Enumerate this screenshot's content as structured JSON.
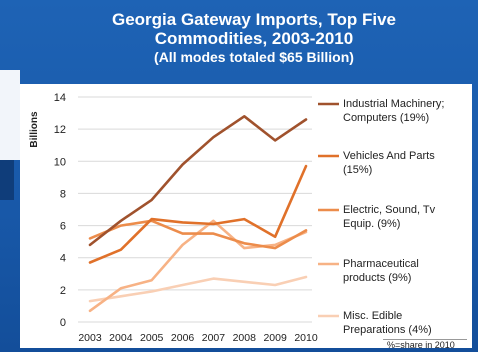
{
  "header": {
    "title_line1": "Georgia Gateway Imports, Top Five",
    "title_line2": "Commodities, 2003-2010",
    "subtitle": "(All modes totaled $65 Billion)"
  },
  "chart_data": {
    "type": "line",
    "title": "Georgia Gateway Imports, Top Five Commodities, 2003-2010",
    "subtitle": "(All modes totaled $65 Billion)",
    "ylabel": "Billions",
    "xlabel": "",
    "x": [
      "2003",
      "2004",
      "2005",
      "2006",
      "2007",
      "2008",
      "2009",
      "2010"
    ],
    "ylim": [
      0,
      14
    ],
    "yticks": [
      0,
      2,
      4,
      6,
      8,
      10,
      12,
      14
    ],
    "grid": true,
    "legend_position": "right",
    "series": [
      {
        "name": "Industrial Machinery; Computers (19%)",
        "label_lines": [
          "Industrial Machinery;",
          "Computers (19%)"
        ],
        "color": "#a0522d",
        "values": [
          4.8,
          6.3,
          7.6,
          9.8,
          11.5,
          12.8,
          11.3,
          12.6
        ]
      },
      {
        "name": "Vehicles And Parts (15%)",
        "label_lines": [
          "Vehicles And Parts",
          "(15%)"
        ],
        "color": "#e0712a",
        "values": [
          3.7,
          4.5,
          6.4,
          6.2,
          6.1,
          6.4,
          5.3,
          9.7
        ]
      },
      {
        "name": "Electric, Sound, Tv Equip. (9%)",
        "label_lines": [
          "Electric, Sound, Tv",
          "Equip. (9%)"
        ],
        "color": "#ec8c4b",
        "values": [
          5.2,
          6.0,
          6.3,
          5.5,
          5.5,
          4.9,
          4.6,
          5.7
        ]
      },
      {
        "name": "Pharmaceutical products (9%)",
        "label_lines": [
          "Pharmaceutical",
          "products (9%)"
        ],
        "color": "#f7b285",
        "values": [
          0.7,
          2.1,
          2.6,
          4.8,
          6.3,
          4.6,
          4.8,
          5.6
        ]
      },
      {
        "name": "Misc. Edible Preparations (4%)",
        "label_lines": [
          "Misc. Edible",
          "Preparations (4%)"
        ],
        "color": "#f9cfb4",
        "values": [
          1.3,
          1.6,
          1.9,
          2.3,
          2.7,
          2.5,
          2.3,
          2.8
        ]
      }
    ],
    "note": "%=share in 2010"
  }
}
